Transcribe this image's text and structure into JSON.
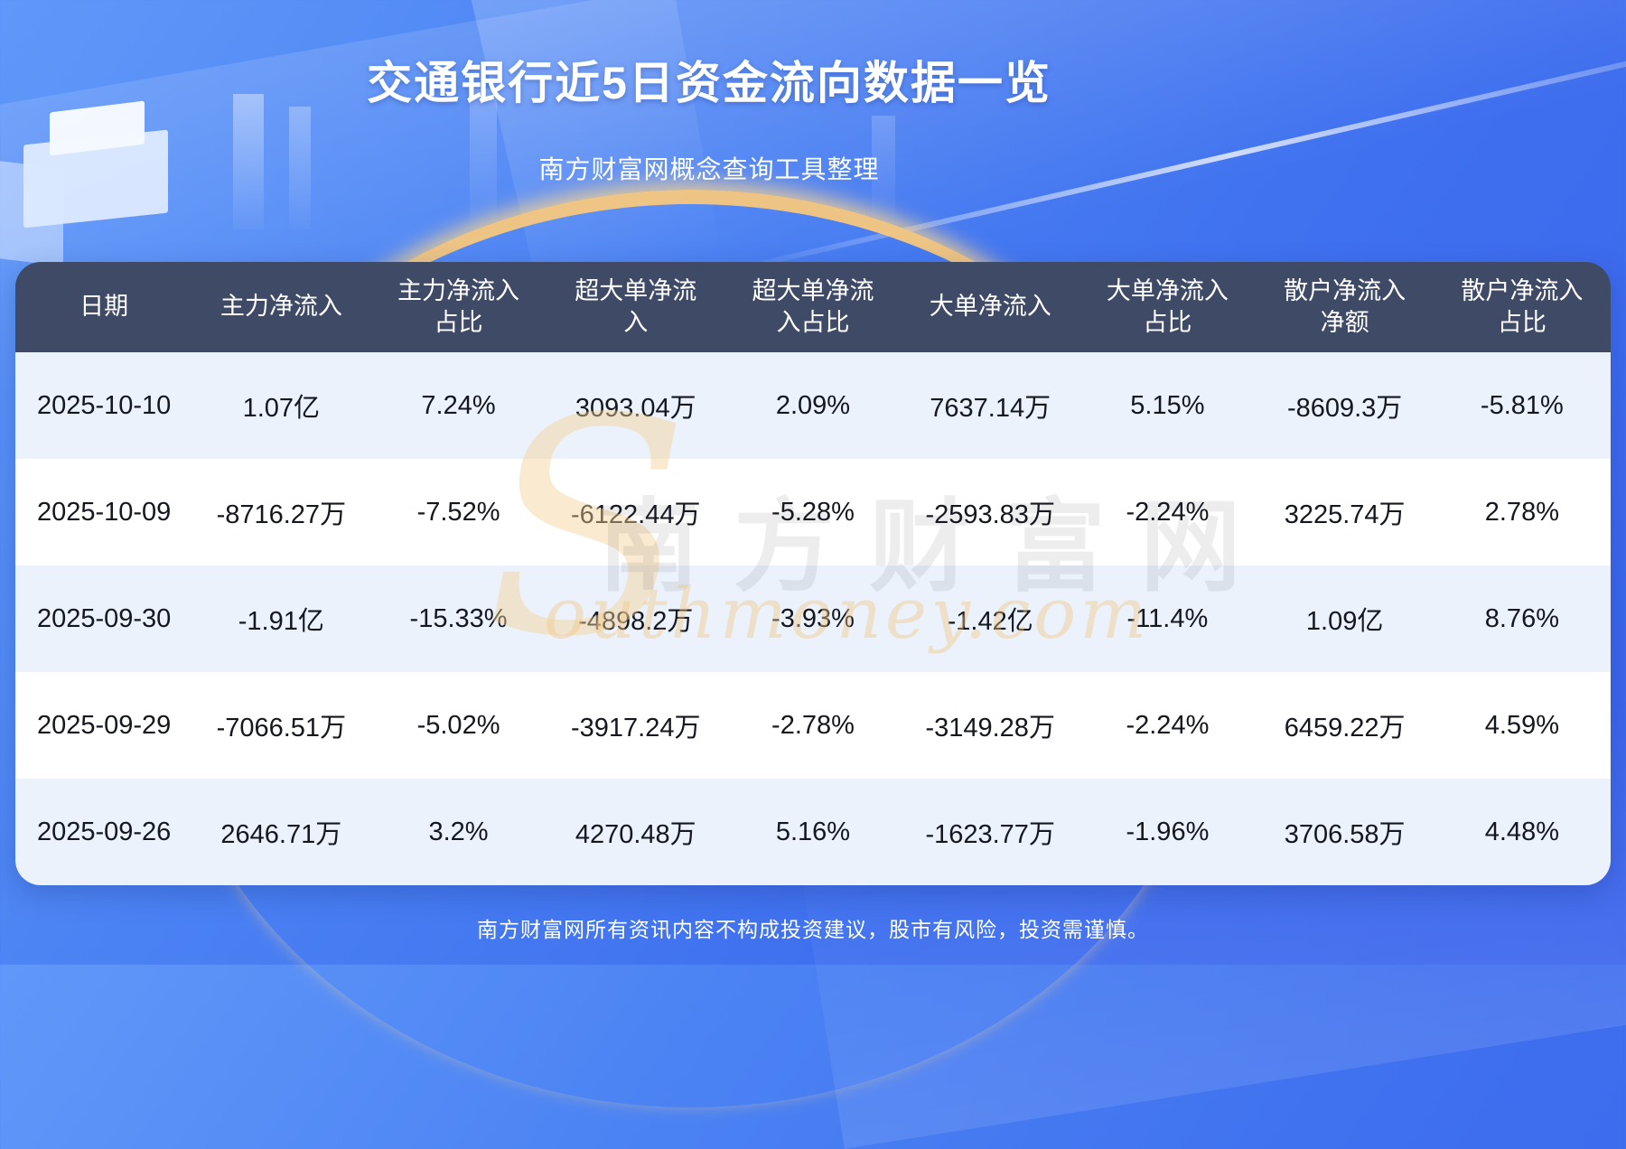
{
  "header": {
    "title": "交通银行近5日资金流向数据一览",
    "subtitle": "南方财富网概念查询工具整理"
  },
  "chart_data": {
    "type": "table",
    "title": "交通银行近5日资金流向数据一览",
    "columns": [
      "日期",
      "主力净流入",
      "主力净流入\n占比",
      "超大单净流\n入",
      "超大单净流\n入占比",
      "大单净流入",
      "大单净流入\n占比",
      "散户净流入\n净额",
      "散户净流入\n占比"
    ],
    "rows": [
      [
        "2025-10-10",
        "1.07亿",
        "7.24%",
        "3093.04万",
        "2.09%",
        "7637.14万",
        "5.15%",
        "-8609.3万",
        "-5.81%"
      ],
      [
        "2025-10-09",
        "-8716.27万",
        "-7.52%",
        "-6122.44万",
        "-5.28%",
        "-2593.83万",
        "-2.24%",
        "3225.74万",
        "2.78%"
      ],
      [
        "2025-09-30",
        "-1.91亿",
        "-15.33%",
        "-4898.2万",
        "-3.93%",
        "-1.42亿",
        "-11.4%",
        "1.09亿",
        "8.76%"
      ],
      [
        "2025-09-29",
        "-7066.51万",
        "-5.02%",
        "-3917.24万",
        "-2.78%",
        "-3149.28万",
        "-2.24%",
        "6459.22万",
        "4.59%"
      ],
      [
        "2025-09-26",
        "2646.71万",
        "3.2%",
        "4270.48万",
        "5.16%",
        "-1623.77万",
        "-1.96%",
        "3706.58万",
        "4.48%"
      ]
    ]
  },
  "watermark": {
    "swoosh": "S",
    "brand_cn": "南方财富网",
    "brand_en": "outhmoney.com"
  },
  "footer": {
    "disclaimer": "南方财富网所有资讯内容不构成投资建议，股市有风险，投资需谨慎。"
  },
  "colors": {
    "background_top": "#6098F9",
    "background_bottom": "#3A63EC",
    "table_header_bg": "#3E4A66",
    "row_alt_bg": "#EBF2FC",
    "row_bg": "#FFFFFF",
    "accent_gold": "#F6C87F",
    "title_text": "#FFFFFF",
    "cell_text": "#14171E"
  }
}
